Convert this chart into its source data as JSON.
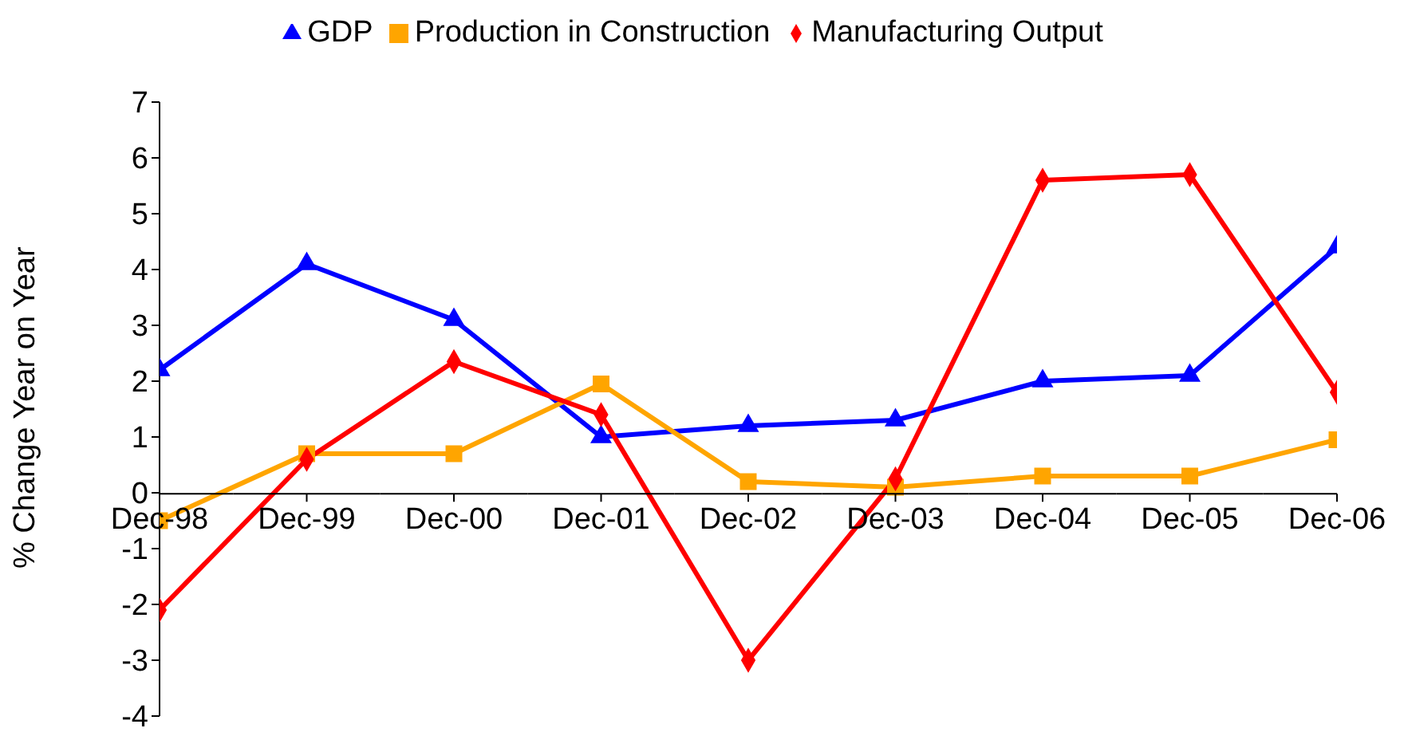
{
  "chart_data": {
    "type": "line",
    "ylabel": "% Change Year on Year",
    "categories": [
      "Dec-98",
      "Dec-99",
      "Dec-00",
      "Dec-01",
      "Dec-02",
      "Dec-03",
      "Dec-04",
      "Dec-05",
      "Dec-06"
    ],
    "series": [
      {
        "name": "GDP",
        "color": "#0000ff",
        "marker": "triangle",
        "values": [
          2.2,
          4.1,
          3.1,
          1.0,
          1.2,
          1.3,
          2.0,
          2.1,
          4.4
        ]
      },
      {
        "name": "Production in Construction",
        "color": "#ffa500",
        "marker": "square",
        "values": [
          -0.5,
          0.7,
          0.7,
          1.95,
          0.2,
          0.1,
          0.3,
          0.3,
          0.95
        ]
      },
      {
        "name": "Manufacturing Output",
        "color": "#ff0000",
        "marker": "diamond",
        "values": [
          -2.1,
          0.6,
          2.35,
          1.4,
          -3.0,
          0.25,
          5.6,
          5.7,
          1.8
        ]
      }
    ],
    "ylim": [
      -4,
      7
    ],
    "yticks": [
      -4,
      -3,
      -2,
      -1,
      0,
      1,
      2,
      3,
      4,
      5,
      6,
      7
    ],
    "grid": false,
    "legend": "top",
    "line_style": "solid"
  }
}
